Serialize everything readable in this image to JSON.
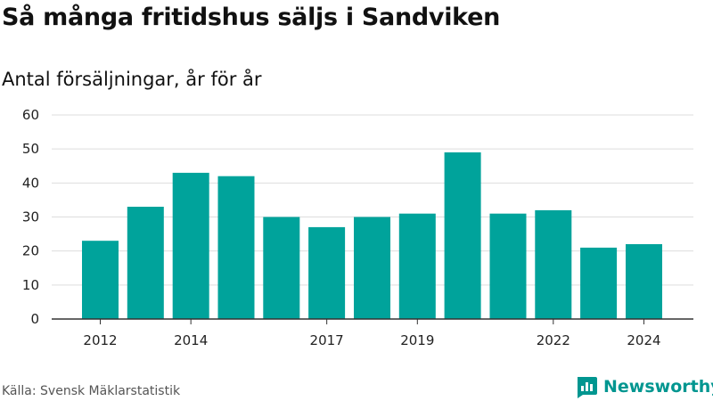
{
  "header": {
    "title": "Så många fritidshus säljs i Sandviken",
    "subtitle": "Antal försäljningar, år för år"
  },
  "footer": {
    "source": "Källa: Svensk Mäklarstatistik",
    "brand": "Newsworthy"
  },
  "colors": {
    "bar": "#00a39b",
    "grid": "#dddddd",
    "axis": "#333333",
    "brand": "#009690"
  },
  "chart_data": {
    "type": "bar",
    "title": "Så många fritidshus säljs i Sandviken",
    "subtitle": "Antal försäljningar, år för år",
    "categories": [
      "2012",
      "2013",
      "2014",
      "2015",
      "2016",
      "2017",
      "2018",
      "2019",
      "2020",
      "2021",
      "2022",
      "2023",
      "2024"
    ],
    "values": [
      23,
      33,
      43,
      42,
      30,
      27,
      30,
      31,
      49,
      31,
      32,
      21,
      22
    ],
    "x_tick_labels": [
      "2012",
      "2014",
      "2017",
      "2019",
      "2022",
      "2024"
    ],
    "y_ticks": [
      0,
      10,
      20,
      30,
      40,
      50,
      60
    ],
    "ylim": [
      0,
      60
    ],
    "grid": true,
    "legend": "none",
    "xlabel": "",
    "ylabel": ""
  }
}
